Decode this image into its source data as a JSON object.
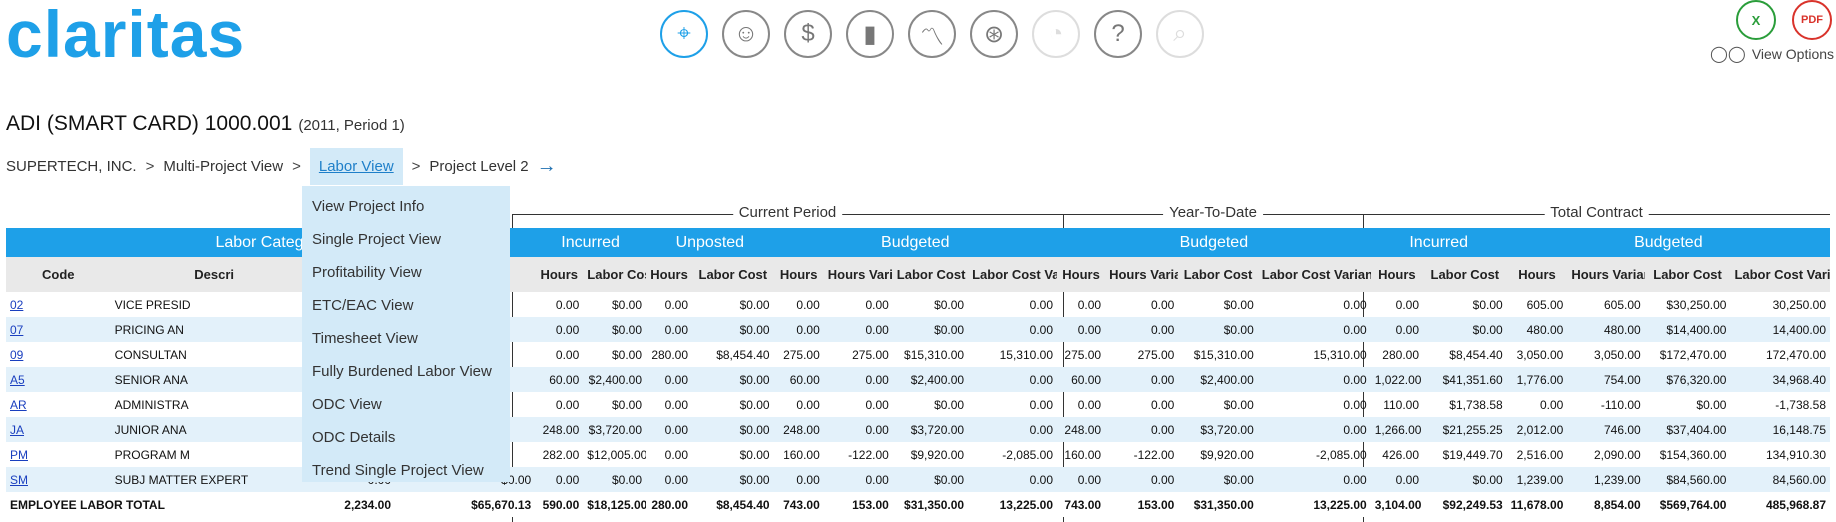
{
  "brand": {
    "logo": "claritas"
  },
  "toolbar": [
    {
      "name": "filter-icon",
      "glyph": "⌖",
      "state": "active"
    },
    {
      "name": "people-icon",
      "glyph": "☺",
      "state": "normal"
    },
    {
      "name": "dollar-icon",
      "glyph": "$",
      "state": "normal"
    },
    {
      "name": "bar-chart-icon",
      "glyph": "▮",
      "state": "normal"
    },
    {
      "name": "line-chart-icon",
      "glyph": "〽",
      "state": "normal"
    },
    {
      "name": "wheel-icon",
      "glyph": "⊛",
      "state": "normal"
    },
    {
      "name": "pie-chart-icon",
      "glyph": "◔",
      "state": "disabled"
    },
    {
      "name": "help-icon",
      "glyph": "?",
      "state": "normal"
    },
    {
      "name": "search-icon",
      "glyph": "⌕",
      "state": "disabled"
    }
  ],
  "export": {
    "excel": "X",
    "pdf": "PDF"
  },
  "view_options": "View Options",
  "project": {
    "title": "ADI (SMART CARD) 1000.001",
    "subtitle": "(2011, Period 1)"
  },
  "breadcrumb": {
    "item1": "SUPERTECH, INC.",
    "sep1": ">",
    "item2": "Multi-Project View",
    "sep2": ">",
    "active": "Labor View",
    "sep3": ">",
    "item4": "Project Level 2",
    "arrow": "→"
  },
  "menu": [
    "View Project Info",
    "Single Project View",
    "Profitability View",
    "ETC/EAC View",
    "Timesheet View",
    "Fully Burdened Labor View",
    "ODC View",
    "ODC Details",
    "Trend Single Project View"
  ],
  "groups": {
    "current": "Current Period",
    "ytd": "Year-To-Date",
    "total": "Total Contract"
  },
  "bands": {
    "labor_category": "Labor Category",
    "incurred": "Incurred",
    "unposted": "Unposted",
    "budgeted": "Budgeted",
    "ytd_budgeted": "Budgeted",
    "tc_incurred": "Incurred",
    "tc_budgeted": "Budgeted"
  },
  "headers": [
    "Code",
    "Descri",
    "",
    "",
    "Hours",
    "Labor Cost",
    "Hours",
    "Labor Cost",
    "Hours",
    "Hours Variance",
    "Labor Cost",
    "Labor Cost Variance",
    "Hours",
    "Hours Variance",
    "Labor Cost",
    "Labor Cost Variance",
    "Hours",
    "Labor Cost",
    "Hours",
    "Hours Variance",
    "Labor Cost",
    "Labor Cost Variance"
  ],
  "rows": [
    [
      "02",
      "VICE PRESID",
      "",
      "",
      "0.00",
      "$0.00",
      "0.00",
      "$0.00",
      "0.00",
      "0.00",
      "$0.00",
      "0.00",
      "0.00",
      "0.00",
      "$0.00",
      "0.00",
      "0.00",
      "$0.00",
      "605.00",
      "605.00",
      "$30,250.00",
      "30,250.00"
    ],
    [
      "07",
      "PRICING AN",
      "",
      "",
      "0.00",
      "$0.00",
      "0.00",
      "$0.00",
      "0.00",
      "0.00",
      "$0.00",
      "0.00",
      "0.00",
      "0.00",
      "$0.00",
      "0.00",
      "0.00",
      "$0.00",
      "480.00",
      "480.00",
      "$14,400.00",
      "14,400.00"
    ],
    [
      "09",
      "CONSULTAN",
      "",
      "",
      "0.00",
      "$0.00",
      "280.00",
      "$8,454.40",
      "275.00",
      "275.00",
      "$15,310.00",
      "15,310.00",
      "275.00",
      "275.00",
      "$15,310.00",
      "15,310.00",
      "280.00",
      "$8,454.40",
      "3,050.00",
      "3,050.00",
      "$172,470.00",
      "172,470.00"
    ],
    [
      "A5",
      "SENIOR ANA",
      "",
      "",
      "60.00",
      "$2,400.00",
      "0.00",
      "$0.00",
      "60.00",
      "0.00",
      "$2,400.00",
      "0.00",
      "60.00",
      "0.00",
      "$2,400.00",
      "0.00",
      "1,022.00",
      "$41,351.60",
      "1,776.00",
      "754.00",
      "$76,320.00",
      "34,968.40"
    ],
    [
      "AR",
      "ADMINISTRA",
      "",
      "",
      "0.00",
      "$0.00",
      "0.00",
      "$0.00",
      "0.00",
      "0.00",
      "$0.00",
      "0.00",
      "0.00",
      "0.00",
      "$0.00",
      "0.00",
      "110.00",
      "$1,738.58",
      "0.00",
      "-110.00",
      "$0.00",
      "-1,738.58"
    ],
    [
      "JA",
      "JUNIOR ANA",
      "",
      "",
      "248.00",
      "$3,720.00",
      "0.00",
      "$0.00",
      "248.00",
      "0.00",
      "$3,720.00",
      "0.00",
      "248.00",
      "0.00",
      "$3,720.00",
      "0.00",
      "1,266.00",
      "$21,255.25",
      "2,012.00",
      "746.00",
      "$37,404.00",
      "16,148.75"
    ],
    [
      "PM",
      "PROGRAM M",
      "",
      "",
      "282.00",
      "$12,005.00",
      "0.00",
      "$0.00",
      "160.00",
      "-122.00",
      "$9,920.00",
      "-2,085.00",
      "160.00",
      "-122.00",
      "$9,920.00",
      "-2,085.00",
      "426.00",
      "$19,449.70",
      "2,516.00",
      "2,090.00",
      "$154,360.00",
      "134,910.30"
    ],
    [
      "SM",
      "SUBJ MATTER EXPERT",
      "0.00",
      "$0.00",
      "0.00",
      "$0.00",
      "0.00",
      "$0.00",
      "0.00",
      "0.00",
      "$0.00",
      "0.00",
      "0.00",
      "0.00",
      "$0.00",
      "0.00",
      "0.00",
      "$0.00",
      "1,239.00",
      "1,239.00",
      "$84,560.00",
      "84,560.00"
    ]
  ],
  "total": [
    "EMPLOYEE LABOR TOTAL",
    "",
    "2,234.00",
    "$65,670.13",
    "590.00",
    "$18,125.00",
    "280.00",
    "$8,454.40",
    "743.00",
    "153.00",
    "$31,350.00",
    "13,225.00",
    "743.00",
    "153.00",
    "$31,350.00",
    "13,225.00",
    "3,104.00",
    "$92,249.53",
    "11,678.00",
    "8,854.00",
    "$569,764.00",
    "485,968.87"
  ]
}
